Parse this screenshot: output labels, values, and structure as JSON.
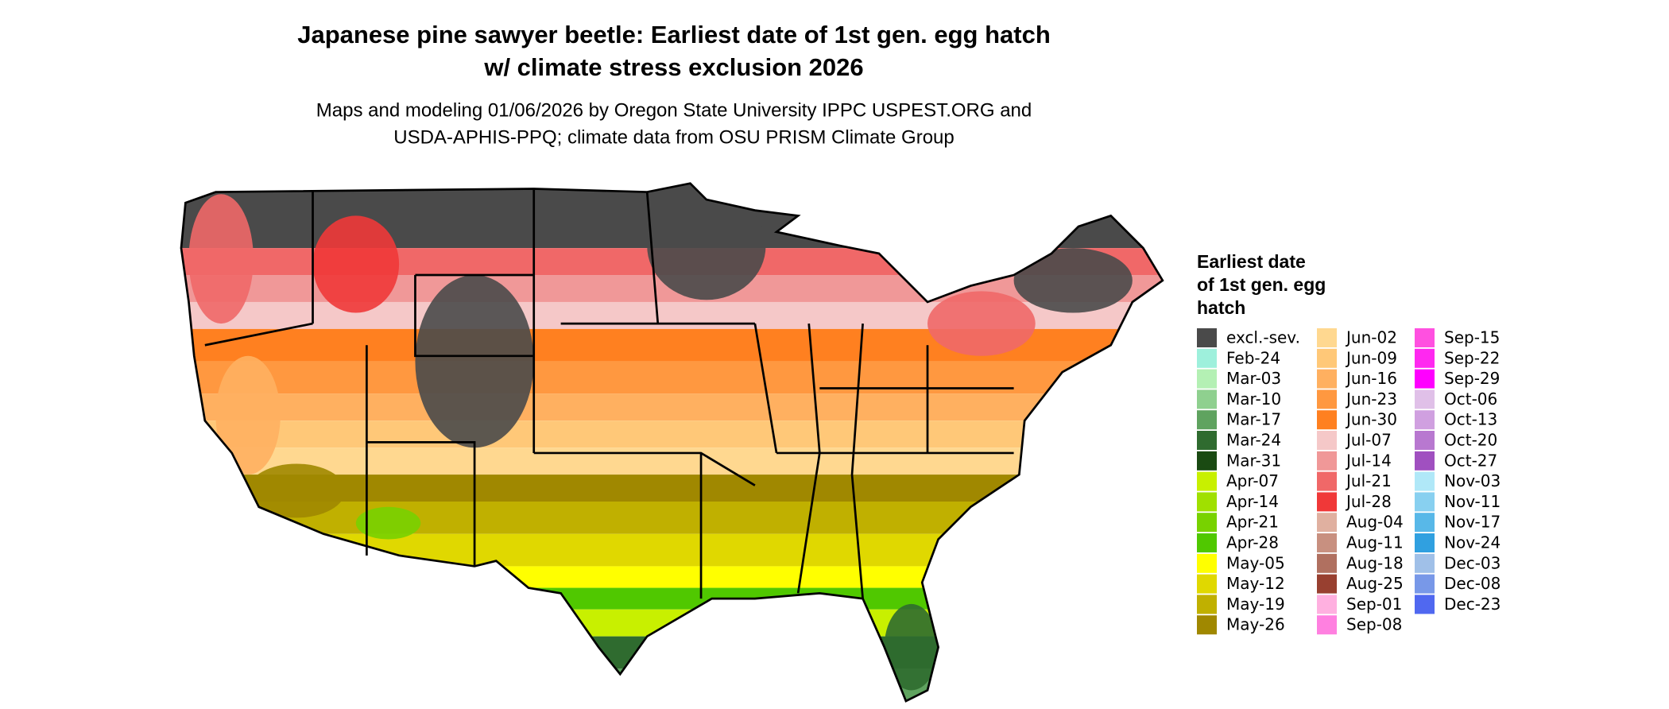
{
  "header": {
    "title": [
      "Japanese pine sawyer beetle: Earliest date of 1st gen. egg hatch",
      "w/ climate stress exclusion 2026"
    ],
    "subtitle": [
      "Maps and modeling 01/06/2026 by Oregon State University IPPC USPEST.ORG and",
      "USDA-APHIS-PPQ; climate data from OSU PRISM Climate Group"
    ]
  },
  "legend": {
    "title": [
      "Earliest date",
      "of 1st gen. egg",
      "hatch"
    ],
    "items": [
      {
        "label": "excl.-sev.",
        "color": "#4a4a4a"
      },
      {
        "label": "Feb-24",
        "color": "#9ef0dc"
      },
      {
        "label": "Mar-03",
        "color": "#b4f0b4"
      },
      {
        "label": "Mar-10",
        "color": "#8fd08f"
      },
      {
        "label": "Mar-17",
        "color": "#5fa35f"
      },
      {
        "label": "Mar-24",
        "color": "#2f6b2f"
      },
      {
        "label": "Mar-31",
        "color": "#1a4a12"
      },
      {
        "label": "Apr-07",
        "color": "#c8f000"
      },
      {
        "label": "Apr-14",
        "color": "#a0e000"
      },
      {
        "label": "Apr-21",
        "color": "#78d200"
      },
      {
        "label": "Apr-28",
        "color": "#50c800"
      },
      {
        "label": "May-05",
        "color": "#ffff00"
      },
      {
        "label": "May-12",
        "color": "#e0d800"
      },
      {
        "label": "May-19",
        "color": "#c0b000"
      },
      {
        "label": "May-26",
        "color": "#a08800"
      },
      {
        "label": "Jun-02",
        "color": "#ffd890"
      },
      {
        "label": "Jun-09",
        "color": "#ffc878"
      },
      {
        "label": "Jun-16",
        "color": "#ffb060"
      },
      {
        "label": "Jun-23",
        "color": "#ff9840"
      },
      {
        "label": "Jun-30",
        "color": "#ff8020"
      },
      {
        "label": "Jul-07",
        "color": "#f5c8c8"
      },
      {
        "label": "Jul-14",
        "color": "#f09898"
      },
      {
        "label": "Jul-21",
        "color": "#f06868"
      },
      {
        "label": "Jul-28",
        "color": "#f03838"
      },
      {
        "label": "Aug-04",
        "color": "#e0b0a0"
      },
      {
        "label": "Aug-11",
        "color": "#c89080"
      },
      {
        "label": "Aug-18",
        "color": "#b07060"
      },
      {
        "label": "Aug-25",
        "color": "#984030"
      },
      {
        "label": "Sep-01",
        "color": "#ffb0e0"
      },
      {
        "label": "Sep-08",
        "color": "#ff80e0"
      },
      {
        "label": "Sep-15",
        "color": "#ff50e0"
      },
      {
        "label": "Sep-22",
        "color": "#ff28f0"
      },
      {
        "label": "Sep-29",
        "color": "#ff00ff"
      },
      {
        "label": "Oct-06",
        "color": "#e0c0e8"
      },
      {
        "label": "Oct-13",
        "color": "#d0a0e0"
      },
      {
        "label": "Oct-20",
        "color": "#b878d0"
      },
      {
        "label": "Oct-27",
        "color": "#a050c0"
      },
      {
        "label": "Nov-03",
        "color": "#b0e8f8"
      },
      {
        "label": "Nov-11",
        "color": "#88d0f0"
      },
      {
        "label": "Nov-17",
        "color": "#58b8e8"
      },
      {
        "label": "Nov-24",
        "color": "#30a0e0"
      },
      {
        "label": "Dec-03",
        "color": "#a0c0e8"
      },
      {
        "label": "Dec-08",
        "color": "#7898e8"
      },
      {
        "label": "Dec-23",
        "color": "#5068f0"
      }
    ]
  }
}
